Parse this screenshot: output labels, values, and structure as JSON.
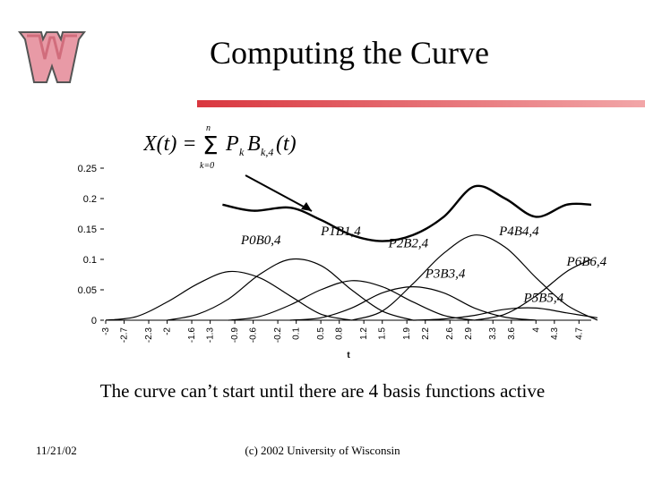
{
  "slide": {
    "title": "Computing the Curve",
    "caption": "The curve can’t start until there are 4 basis functions active",
    "footer_date": "11/21/02",
    "footer_copyright": "(c) 2002 University of Wisconsin",
    "logo_name": "wisconsin-w-logo",
    "accent_color": "#d9373f",
    "logo_color": "#e89aa6"
  },
  "formula": {
    "lhs": "X(t) =",
    "sum_top": "n",
    "sum_bottom": "k=0",
    "term": "P",
    "sub_k": "k",
    "basis": "B",
    "sub_basis": "k,4",
    "arg": "(t)"
  },
  "chart_data": {
    "type": "line",
    "xlabel": "t",
    "ylabel": "",
    "ylim": [
      0,
      0.25
    ],
    "xlim": [
      -3,
      4.9
    ],
    "yticks": [
      "0",
      "0.05",
      "0.1",
      "0.15",
      "0.2",
      "0.25"
    ],
    "xticks": [
      "-3",
      "-2.7",
      "-2.3",
      "-2",
      "-1.6",
      "-1.3",
      "-0.9",
      "-0.6",
      "-0.2",
      "0.1",
      "0.5",
      "0.8",
      "1.2",
      "1.5",
      "1.9",
      "2.2",
      "2.6",
      "2.9",
      "3.3",
      "3.6",
      "4",
      "4.3",
      "4.7"
    ],
    "grid": false,
    "series": [
      {
        "name": "P0B0,4",
        "x": [
          -3,
          -2.5,
          -2,
          -1.5,
          -1,
          -0.5,
          0,
          0.5,
          1
        ],
        "y": [
          0,
          0.006,
          0.03,
          0.06,
          0.08,
          0.07,
          0.04,
          0.01,
          0
        ]
      },
      {
        "name": "P1B1,4",
        "x": [
          -2,
          -1.5,
          -1,
          -0.5,
          0,
          0.5,
          1,
          1.5,
          2
        ],
        "y": [
          0,
          0.01,
          0.035,
          0.075,
          0.1,
          0.09,
          0.05,
          0.015,
          0
        ]
      },
      {
        "name": "P2B2,4",
        "x": [
          -1,
          -0.5,
          0,
          0.5,
          1,
          1.5,
          2,
          2.5,
          3
        ],
        "y": [
          0,
          0.006,
          0.025,
          0.05,
          0.065,
          0.055,
          0.03,
          0.008,
          0
        ]
      },
      {
        "name": "P3B3,4",
        "x": [
          0,
          0.5,
          1,
          1.5,
          2,
          2.5,
          3,
          3.5,
          4
        ],
        "y": [
          0,
          0.004,
          0.02,
          0.045,
          0.055,
          0.045,
          0.02,
          0.005,
          0
        ]
      },
      {
        "name": "P4B4,4",
        "x": [
          1,
          1.5,
          2,
          2.5,
          3,
          3.5,
          4,
          4.5,
          5
        ],
        "y": [
          0,
          0.015,
          0.06,
          0.11,
          0.14,
          0.12,
          0.07,
          0.025,
          0
        ]
      },
      {
        "name": "P5B5,4",
        "x": [
          2,
          2.5,
          3,
          3.5,
          4,
          4.5,
          5
        ],
        "y": [
          0,
          0.002,
          0.008,
          0.018,
          0.02,
          0.012,
          0.004
        ]
      },
      {
        "name": "P6B6,4",
        "x": [
          3,
          3.5,
          4,
          4.5,
          4.9
        ],
        "y": [
          0,
          0.01,
          0.04,
          0.08,
          0.1
        ]
      },
      {
        "name": "X(t)",
        "x": [
          -1.1,
          -0.6,
          0,
          0.5,
          1,
          1.5,
          2,
          2.5,
          3,
          3.5,
          4,
          4.5,
          4.9
        ],
        "y": [
          0.19,
          0.18,
          0.185,
          0.165,
          0.14,
          0.13,
          0.14,
          0.17,
          0.22,
          0.2,
          0.17,
          0.19,
          0.19
        ]
      }
    ],
    "annotations": [
      {
        "text": "P0B0,4",
        "at_x": -0.8,
        "at_y": 0.125
      },
      {
        "text": "P1B1,4",
        "at_x": 0.5,
        "at_y": 0.14
      },
      {
        "text": "P2B2,4",
        "at_x": 1.6,
        "at_y": 0.12
      },
      {
        "text": "P3B3,4",
        "at_x": 2.2,
        "at_y": 0.07
      },
      {
        "text": "P4B4,4",
        "at_x": 3.4,
        "at_y": 0.14
      },
      {
        "text": "P5B5,4",
        "at_x": 3.8,
        "at_y": 0.03
      },
      {
        "text": "P6B6,4",
        "at_x": 4.5,
        "at_y": 0.09
      }
    ]
  }
}
